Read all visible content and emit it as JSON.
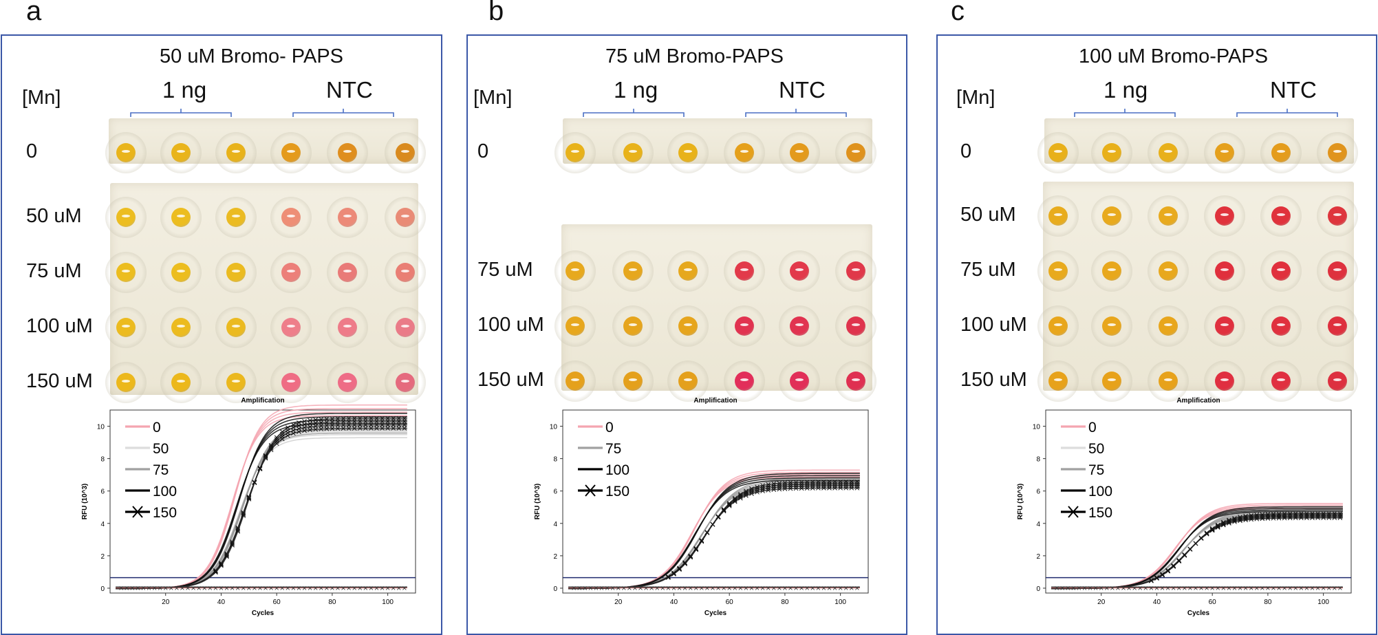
{
  "panels": [
    {
      "letter": "a",
      "title": "50 uM Bromo- PAPS",
      "mn_label": "[Mn]",
      "groups": [
        "1 ng",
        "NTC"
      ],
      "rows": [
        {
          "label": "0",
          "colors": [
            "#e9b41b",
            "#e9b41b",
            "#e8b21a",
            "#e49a1c",
            "#df8e1e",
            "#d98a1e"
          ]
        },
        {
          "label": "50 uM",
          "colors": [
            "#ecbd20",
            "#ecbd20",
            "#ebbb22",
            "#ee8e76",
            "#ec8a78",
            "#e98b76"
          ]
        },
        {
          "label": "75 uM",
          "colors": [
            "#ecbd1f",
            "#ecbd1f",
            "#ebbb20",
            "#ec7f79",
            "#e97a78",
            "#e97e74"
          ]
        },
        {
          "label": "100 uM",
          "colors": [
            "#ecbb1f",
            "#ecbb1f",
            "#ebba20",
            "#ee7e8a",
            "#ee7b89",
            "#ea7b88"
          ]
        },
        {
          "label": "150 uM",
          "colors": [
            "#ecb81c",
            "#ecb81c",
            "#ebb81e",
            "#ef6d84",
            "#ee6c86",
            "#e56a7e"
          ]
        }
      ],
      "chart": {
        "title": "Amplification",
        "xlabel": "Cycles",
        "ylabel": "RFU (10^3)",
        "x_ticks": [
          "20",
          "40",
          "60",
          "80",
          "100"
        ],
        "y_ticks": [
          "0",
          "2",
          "4",
          "6",
          "8",
          "10"
        ],
        "legend": [
          "0",
          "50",
          "75",
          "100",
          "150"
        ]
      }
    },
    {
      "letter": "b",
      "title": "75 uM Bromo-PAPS",
      "mn_label": "[Mn]",
      "groups": [
        "1 ng",
        "NTC"
      ],
      "rows": [
        {
          "label": "0",
          "colors": [
            "#e8b21a",
            "#e8b21a",
            "#e8b21a",
            "#e5a01b",
            "#e39a1c",
            "#df921d"
          ]
        },
        {
          "label": "75 uM",
          "colors": [
            "#e7a91e",
            "#e6a71e",
            "#e6a81e",
            "#e23a4a",
            "#e2394a",
            "#e0384a"
          ]
        },
        {
          "label": "100 uM",
          "colors": [
            "#e7a71d",
            "#e6a51d",
            "#e6a51d",
            "#e13350",
            "#e13350",
            "#df344d"
          ]
        },
        {
          "label": "150 uM",
          "colors": [
            "#e5a11c",
            "#e4a01c",
            "#e4a01c",
            "#e22e5a",
            "#e12f58",
            "#df3051"
          ]
        }
      ],
      "chart": {
        "title": "Amplification",
        "xlabel": "Cycles",
        "ylabel": "RFU (10^3)",
        "x_ticks": [
          "20",
          "40",
          "60",
          "80",
          "100"
        ],
        "y_ticks": [
          "0",
          "2",
          "4",
          "6",
          "8",
          "10"
        ],
        "legend": [
          "0",
          "75",
          "100",
          "150"
        ]
      }
    },
    {
      "letter": "c",
      "title": "100 uM Bromo-PAPS",
      "mn_label": "[Mn]",
      "groups": [
        "1 ng",
        "NTC"
      ],
      "rows": [
        {
          "label": "0",
          "colors": [
            "#e8b01a",
            "#e8b01a",
            "#e8b01a",
            "#e5a01c",
            "#e49c1c",
            "#e0941d"
          ]
        },
        {
          "label": "50 uM",
          "colors": [
            "#e8ac1e",
            "#e8aa1e",
            "#e8aa1e",
            "#e0323c",
            "#e0323c",
            "#de353d"
          ]
        },
        {
          "label": "75 uM",
          "colors": [
            "#e8aa1d",
            "#e8a81d",
            "#e8a81d",
            "#e0303d",
            "#e0303d",
            "#de313e"
          ]
        },
        {
          "label": "100 uM",
          "colors": [
            "#e8a61c",
            "#e8a61c",
            "#e8a61c",
            "#e0303e",
            "#e0303e",
            "#de303e"
          ]
        },
        {
          "label": "150 uM",
          "colors": [
            "#e7a21b",
            "#e7a21b",
            "#e7a21b",
            "#e02f40",
            "#e02f40",
            "#dd3040"
          ]
        }
      ],
      "chart": {
        "title": "Amplification",
        "xlabel": "Cycles",
        "ylabel": "RFU (10^3)",
        "x_ticks": [
          "20",
          "40",
          "60",
          "80",
          "100"
        ],
        "y_ticks": [
          "0",
          "2",
          "4",
          "6",
          "8",
          "10"
        ],
        "legend": [
          "0",
          "50",
          "75",
          "100",
          "150"
        ]
      }
    }
  ],
  "chart_data": [
    {
      "type": "line",
      "title": "Amplification",
      "xlabel": "Cycles",
      "ylabel": "RFU (10^3)",
      "xlim": [
        0,
        110
      ],
      "ylim": [
        -0.3,
        11
      ],
      "threshold": 0.65,
      "series": [
        {
          "name": "0",
          "color": "#f4a5b0",
          "plateau": 11.0,
          "midpoint": 44.5,
          "slope": 4.6
        },
        {
          "name": "50",
          "color": "#d0d0d0",
          "plateau": 9.6,
          "midpoint": 47,
          "slope": 4.9
        },
        {
          "name": "75",
          "color": "#9a9a9a",
          "plateau": 9.9,
          "midpoint": 47.5,
          "slope": 5.0
        },
        {
          "name": "100",
          "color": "#111111",
          "plateau": 10.5,
          "midpoint": 46,
          "slope": 4.8
        },
        {
          "name": "150",
          "color": "#222222",
          "plateau": 10.2,
          "midpoint": 49,
          "slope": 5.1,
          "marker": "x"
        }
      ]
    },
    {
      "type": "line",
      "title": "Amplification",
      "xlabel": "Cycles",
      "ylabel": "RFU (10^3)",
      "xlim": [
        0,
        110
      ],
      "ylim": [
        -0.3,
        11
      ],
      "threshold": 0.65,
      "series": [
        {
          "name": "0",
          "color": "#f4a5b0",
          "plateau": 7.1,
          "midpoint": 47,
          "slope": 5.5
        },
        {
          "name": "75",
          "color": "#9a9a9a",
          "plateau": 6.6,
          "midpoint": 50,
          "slope": 6.0
        },
        {
          "name": "100",
          "color": "#111111",
          "plateau": 6.9,
          "midpoint": 48,
          "slope": 5.7
        },
        {
          "name": "150",
          "color": "#222222",
          "plateau": 6.4,
          "midpoint": 51,
          "slope": 6.2,
          "marker": "x"
        }
      ]
    },
    {
      "type": "line",
      "title": "Amplification",
      "xlabel": "Cycles",
      "ylabel": "RFU (10^3)",
      "xlim": [
        0,
        110
      ],
      "ylim": [
        -0.3,
        11
      ],
      "threshold": 0.65,
      "series": [
        {
          "name": "0",
          "color": "#f4a5b0",
          "plateau": 5.1,
          "midpoint": 47,
          "slope": 5.5
        },
        {
          "name": "50",
          "color": "#d0d0d0",
          "plateau": 4.5,
          "midpoint": 49,
          "slope": 5.8
        },
        {
          "name": "75",
          "color": "#9a9a9a",
          "plateau": 4.7,
          "midpoint": 49.5,
          "slope": 5.9
        },
        {
          "name": "100",
          "color": "#111111",
          "plateau": 4.9,
          "midpoint": 48,
          "slope": 5.6
        },
        {
          "name": "150",
          "color": "#222222",
          "plateau": 4.5,
          "midpoint": 51,
          "slope": 6.2,
          "marker": "x"
        }
      ]
    }
  ]
}
